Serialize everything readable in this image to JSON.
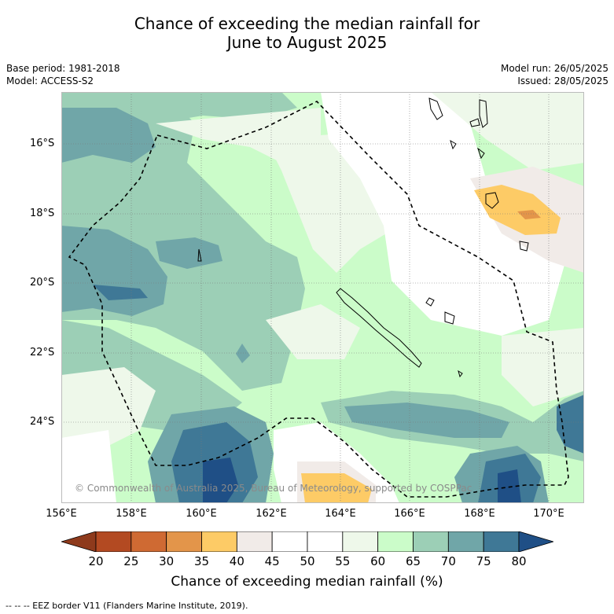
{
  "title_line1": "Chance of exceeding the median rainfall for",
  "title_line2": "June to August 2025",
  "base_period": "Base period: 1981-2018",
  "model": "Model: ACCESS-S2",
  "model_run": "Model run: 26/05/2025",
  "issued": "Issued: 28/05/2025",
  "lat_labels": [
    "16°S",
    "18°S",
    "20°S",
    "22°S",
    "24°S"
  ],
  "lon_labels": [
    "156°E",
    "158°E",
    "160°E",
    "162°E",
    "164°E",
    "166°E",
    "168°E",
    "170°E"
  ],
  "copyright": "© Commonwealth of Australia 2025, Bureau of Meteorology, supported by COSPPac",
  "colorbar": {
    "ticks": [
      "20",
      "25",
      "30",
      "35",
      "40",
      "45",
      "50",
      "55",
      "60",
      "65",
      "70",
      "75",
      "80"
    ],
    "colors": {
      "below20": "#8e3a1c",
      "20-25": "#b34a22",
      "25-30": "#cf6a33",
      "30-35": "#e3954a",
      "35-40": "#fdcb66",
      "40-45": "#f1ebe8",
      "45-50": "#ffffff",
      "50-55": "#ffffff",
      "55-60": "#eef8ea",
      "60-65": "#cbfcc9",
      "65-70": "#9ccfb6",
      "70-75": "#70a6a8",
      "75-80": "#3f7896",
      "above80": "#1f4f86"
    },
    "title": "Chance of exceeding median rainfall (%)"
  },
  "footnote": "--  --  -- EEZ border V11 (Flanders Marine Institute, 2019)."
}
